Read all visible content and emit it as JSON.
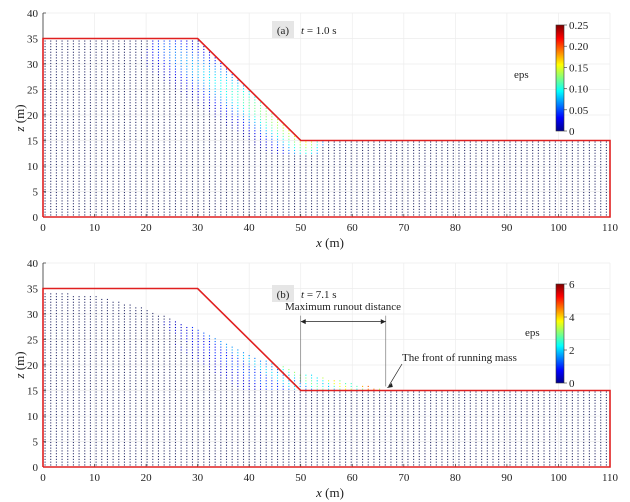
{
  "chart_data": [
    {
      "type": "scatter",
      "panel_label": "(a)",
      "time_var": "t",
      "time_text": " = 1.0 s",
      "xlabel_var": "x",
      "xlabel_unit": " (m)",
      "ylabel_var": "z",
      "ylabel_unit": " (m)",
      "xlim": [
        0,
        110
      ],
      "ylim": [
        0,
        40
      ],
      "xticks": [
        0,
        10,
        20,
        30,
        40,
        50,
        60,
        70,
        80,
        90,
        100,
        110
      ],
      "yticks": [
        0,
        5,
        10,
        15,
        20,
        25,
        30,
        35,
        40
      ],
      "grid": true,
      "boundary": [
        [
          0,
          0
        ],
        [
          0,
          35
        ],
        [
          30,
          35
        ],
        [
          50,
          15
        ],
        [
          110,
          15
        ],
        [
          110,
          0
        ],
        [
          0,
          0
        ]
      ],
      "boundary_color": "#e02020",
      "colorbar": {
        "label": "eps",
        "min": 0,
        "max": 0.25,
        "ticks": [
          0,
          0.05,
          0.1,
          0.15,
          0.2,
          0.25
        ],
        "tick_labels": [
          "0",
          "0.05",
          "0.10",
          "0.15",
          "0.20",
          "0.25"
        ]
      },
      "particles": {
        "description_geometry": "initial slope profile",
        "strain_band": {
          "start": [
            24,
            33
          ],
          "end": [
            51,
            15
          ],
          "peak_strain": 0.16
        }
      }
    },
    {
      "type": "scatter",
      "panel_label": "(b)",
      "time_var": "t",
      "time_text": " = 7.1 s",
      "xlabel_var": "x",
      "xlabel_unit": " (m)",
      "ylabel_var": "z",
      "ylabel_unit": " (m)",
      "xlim": [
        0,
        110
      ],
      "ylim": [
        0,
        40
      ],
      "xticks": [
        0,
        10,
        20,
        30,
        40,
        50,
        60,
        70,
        80,
        90,
        100,
        110
      ],
      "yticks": [
        0,
        5,
        10,
        15,
        20,
        25,
        30,
        35,
        40
      ],
      "grid": true,
      "boundary": [
        [
          0,
          0
        ],
        [
          0,
          35
        ],
        [
          30,
          35
        ],
        [
          50,
          15
        ],
        [
          110,
          15
        ],
        [
          110,
          0
        ],
        [
          0,
          0
        ]
      ],
      "boundary_color": "#e02020",
      "colorbar": {
        "label": "eps",
        "min": 0,
        "max": 6,
        "ticks": [
          0,
          2,
          4,
          6
        ],
        "tick_labels": [
          "0",
          "2",
          "4",
          "6"
        ]
      },
      "annotations": {
        "runout_label": "Maximum runout distance",
        "runout_from_x": 50,
        "runout_to_x": 66.5,
        "runout_z": 28.5,
        "front_label": "The front of running mass",
        "front_point": [
          66.5,
          15.5
        ]
      },
      "deformed_profile": [
        [
          0,
          34.5
        ],
        [
          10,
          33.5
        ],
        [
          20,
          31
        ],
        [
          30,
          27
        ],
        [
          40,
          22
        ],
        [
          50,
          18.5
        ],
        [
          60,
          16.5
        ],
        [
          66.5,
          15.2
        ]
      ]
    }
  ]
}
